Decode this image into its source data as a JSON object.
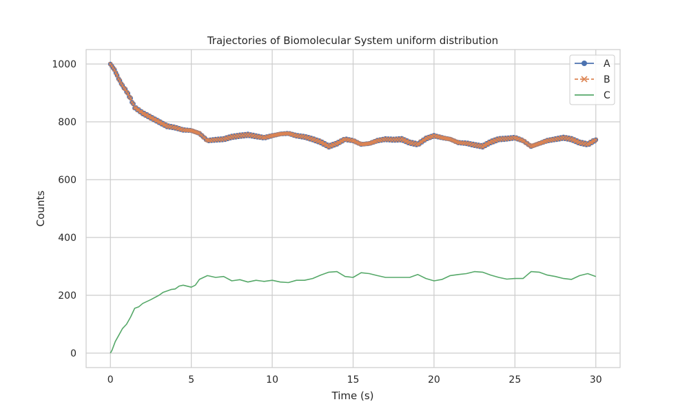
{
  "chart_data": {
    "type": "line",
    "title": "Trajectories of Biomolecular System uniform distribution",
    "xlabel": "Time (s)",
    "ylabel": "Counts",
    "xlim": [
      -1.5,
      31.5
    ],
    "ylim": [
      -50,
      1050
    ],
    "xticks": [
      0,
      5,
      10,
      15,
      20,
      25,
      30
    ],
    "yticks": [
      0,
      200,
      400,
      600,
      800,
      1000
    ],
    "grid": true,
    "legend_position": "top-right",
    "series": [
      {
        "name": "A",
        "color": "#4c72b0",
        "style": "solid",
        "marker": "circle",
        "x": [
          0,
          0.25,
          0.5,
          0.75,
          1,
          1.25,
          1.5,
          1.75,
          2,
          2.5,
          3,
          3.5,
          4,
          4.5,
          5,
          5.5,
          6,
          6.5,
          7,
          7.5,
          8,
          8.5,
          9,
          9.5,
          10,
          10.5,
          11,
          11.5,
          12,
          12.5,
          13,
          13.5,
          14,
          14.5,
          15,
          15.5,
          16,
          16.5,
          17,
          17.5,
          18,
          18.5,
          19,
          19.5,
          20,
          20.5,
          21,
          21.5,
          22,
          22.5,
          23,
          23.5,
          24,
          24.5,
          25,
          25.5,
          26,
          26.5,
          27,
          27.5,
          28,
          28.5,
          29,
          29.5,
          30
        ],
        "values": [
          1000,
          980,
          950,
          925,
          905,
          880,
          850,
          840,
          830,
          815,
          800,
          785,
          780,
          772,
          770,
          760,
          735,
          738,
          740,
          748,
          752,
          755,
          750,
          745,
          752,
          758,
          760,
          752,
          748,
          740,
          730,
          715,
          725,
          740,
          735,
          722,
          725,
          735,
          740,
          738,
          740,
          728,
          722,
          742,
          752,
          745,
          740,
          728,
          726,
          720,
          715,
          730,
          740,
          742,
          745,
          735,
          715,
          725,
          735,
          740,
          745,
          740,
          728,
          722,
          738
        ]
      },
      {
        "name": "B",
        "color": "#dd8452",
        "style": "dashed",
        "marker": "x",
        "x": [
          0,
          0.25,
          0.5,
          0.75,
          1,
          1.25,
          1.5,
          1.75,
          2,
          2.5,
          3,
          3.5,
          4,
          4.5,
          5,
          5.5,
          6,
          6.5,
          7,
          7.5,
          8,
          8.5,
          9,
          9.5,
          10,
          10.5,
          11,
          11.5,
          12,
          12.5,
          13,
          13.5,
          14,
          14.5,
          15,
          15.5,
          16,
          16.5,
          17,
          17.5,
          18,
          18.5,
          19,
          19.5,
          20,
          20.5,
          21,
          21.5,
          22,
          22.5,
          23,
          23.5,
          24,
          24.5,
          25,
          25.5,
          26,
          26.5,
          27,
          27.5,
          28,
          28.5,
          29,
          29.5,
          30
        ],
        "values": [
          1000,
          980,
          950,
          925,
          905,
          880,
          850,
          840,
          830,
          815,
          800,
          785,
          780,
          772,
          770,
          760,
          735,
          738,
          740,
          748,
          752,
          755,
          750,
          745,
          752,
          758,
          760,
          752,
          748,
          740,
          730,
          715,
          725,
          740,
          735,
          722,
          725,
          735,
          740,
          738,
          740,
          728,
          722,
          742,
          752,
          745,
          740,
          728,
          726,
          720,
          715,
          730,
          740,
          742,
          745,
          735,
          715,
          725,
          735,
          740,
          745,
          740,
          728,
          722,
          738
        ]
      },
      {
        "name": "C",
        "color": "#55a868",
        "style": "solid",
        "marker": "none",
        "x": [
          0,
          0.1,
          0.3,
          0.5,
          0.75,
          1,
          1.25,
          1.5,
          1.75,
          2,
          2.5,
          3,
          3.25,
          3.5,
          3.75,
          4,
          4.25,
          4.5,
          5,
          5.25,
          5.5,
          6,
          6.5,
          7,
          7.5,
          8,
          8.5,
          9,
          9.5,
          10,
          10.5,
          11,
          11.5,
          12,
          12.5,
          13,
          13.5,
          14,
          14.5,
          15,
          15.5,
          16,
          16.5,
          17,
          17.5,
          18,
          18.5,
          19,
          19.5,
          20,
          20.5,
          21,
          21.5,
          22,
          22.5,
          23,
          23.5,
          24,
          24.5,
          25,
          25.5,
          26,
          26.5,
          27,
          27.5,
          28,
          28.5,
          29,
          29.5,
          30
        ],
        "values": [
          0,
          10,
          40,
          60,
          85,
          100,
          125,
          155,
          160,
          172,
          185,
          200,
          210,
          215,
          220,
          222,
          232,
          235,
          228,
          235,
          255,
          268,
          262,
          265,
          250,
          254,
          246,
          252,
          248,
          252,
          246,
          244,
          252,
          252,
          258,
          270,
          280,
          282,
          265,
          262,
          278,
          275,
          268,
          262,
          262,
          262,
          262,
          272,
          258,
          250,
          255,
          268,
          272,
          275,
          282,
          280,
          270,
          262,
          256,
          258,
          258,
          282,
          280,
          270,
          265,
          258,
          255,
          268,
          275,
          265
        ]
      }
    ]
  }
}
